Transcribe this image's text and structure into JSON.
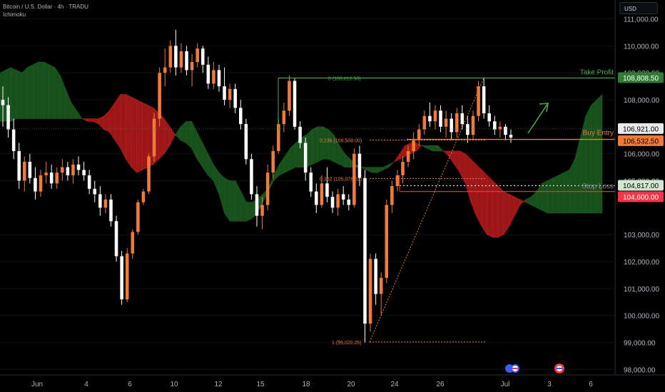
{
  "header": {
    "symbol": "Bitcoin / U.S. Dollar · 4h · TRADU",
    "indicator": "Ichimoku"
  },
  "currency_button": {
    "label": "USD"
  },
  "price_axis": {
    "ticks": [
      "111,000.00",
      "110,000.00",
      "109,000.00",
      "108,000.00",
      "106,000.00",
      "105,000.00",
      "103,000.00",
      "102,000.00",
      "101,000.00",
      "100,000.00",
      "99,000.00",
      "98,000.00"
    ],
    "tick_values": [
      111000,
      110000,
      109000,
      108000,
      106000,
      105000,
      103000,
      102000,
      101000,
      100000,
      99000,
      98000
    ]
  },
  "time_axis": {
    "labels": [
      "Jun",
      "4",
      "6",
      "10",
      "12",
      "15",
      "18",
      "20",
      "24",
      "26",
      "Jul",
      "3",
      "6"
    ]
  },
  "price_labels": [
    {
      "text": "108,808.50",
      "value": 108808.5,
      "bg": "#2e7d32",
      "fg": "#ffffff"
    },
    {
      "text": "106,921.00",
      "value": 106921,
      "bg": "#e8eaed",
      "fg": "#000000"
    },
    {
      "text": "106,532.50",
      "value": 106532.5,
      "bg": "#f07a3a",
      "fg": "#000000"
    },
    {
      "text": "104,817.00",
      "value": 104817,
      "bg": "#cfe8cf",
      "fg": "#000000"
    },
    {
      "text": "104,600.00",
      "value": 104600,
      "bg": "#f23645",
      "fg": "#ffffff"
    }
  ],
  "annotations": {
    "take_profit": "Take Profit",
    "buy_entry": "Buy Entry",
    "stop_loss": "Stop Loss"
  },
  "fib_labels": {
    "level_0": "0 (108,810.50)",
    "level_0236": "0.236 (106,508.00)",
    "level_0382": "0.382 (105,076.61)",
    "level_1": "1 (99,020.25)"
  },
  "colors": {
    "up": "#f07a3a",
    "down": "#ffffff",
    "cloud_bull": "#1b5e20",
    "cloud_bear": "#b71c1c",
    "take_profit_line": "#4caf50",
    "entry_line": "#f07a3a",
    "stop_line": "#f23645",
    "fib": "#f07a3a",
    "arrow": "#4caf50"
  },
  "chart_data": {
    "type": "candlestick",
    "ylim": [
      97800,
      111700
    ],
    "candles": [
      [
        108000,
        108500,
        107000,
        107800
      ],
      [
        107800,
        108100,
        106600,
        106900
      ],
      [
        106900,
        107300,
        105800,
        106100
      ],
      [
        106100,
        106400,
        104700,
        105000
      ],
      [
        105000,
        105900,
        104600,
        105700
      ],
      [
        105700,
        106000,
        104900,
        105100
      ],
      [
        105100,
        105500,
        104300,
        104600
      ],
      [
        104600,
        105400,
        104400,
        105200
      ],
      [
        105200,
        105700,
        104900,
        105300
      ],
      [
        105300,
        105600,
        104700,
        104900
      ],
      [
        104900,
        105500,
        104700,
        105300
      ],
      [
        105300,
        105800,
        105000,
        105500
      ],
      [
        105500,
        105700,
        105000,
        105200
      ],
      [
        105200,
        105800,
        104900,
        105600
      ],
      [
        105600,
        105900,
        105200,
        105400
      ],
      [
        105400,
        105700,
        105000,
        105200
      ],
      [
        105200,
        105400,
        104500,
        104700
      ],
      [
        104700,
        105000,
        104200,
        104500
      ],
      [
        104500,
        104800,
        103700,
        104000
      ],
      [
        104000,
        104500,
        103800,
        104300
      ],
      [
        104300,
        104500,
        103300,
        103500
      ],
      [
        103500,
        103700,
        102000,
        102200
      ],
      [
        102200,
        102400,
        100400,
        100600
      ],
      [
        100600,
        102500,
        100500,
        102300
      ],
      [
        102300,
        103200,
        102100,
        103100
      ],
      [
        103100,
        104300,
        103000,
        104200
      ],
      [
        104200,
        104700,
        104100,
        104600
      ],
      [
        104600,
        106000,
        104500,
        105900
      ],
      [
        105900,
        107500,
        105700,
        107300
      ],
      [
        107300,
        109200,
        107000,
        109000
      ],
      [
        109000,
        109900,
        108500,
        109200
      ],
      [
        109200,
        110200,
        109000,
        110000
      ],
      [
        110000,
        110600,
        108900,
        109200
      ],
      [
        109200,
        110100,
        109000,
        109800
      ],
      [
        109800,
        110000,
        108900,
        109100
      ],
      [
        109100,
        109700,
        108500,
        109400
      ],
      [
        109400,
        110100,
        109200,
        109900
      ],
      [
        109900,
        110000,
        109000,
        109300
      ],
      [
        109300,
        109600,
        108400,
        108600
      ],
      [
        108600,
        109400,
        108400,
        109100
      ],
      [
        109100,
        109300,
        108300,
        108500
      ],
      [
        108500,
        109200,
        107800,
        108000
      ],
      [
        108000,
        108600,
        107700,
        108400
      ],
      [
        108400,
        108600,
        107500,
        107700
      ],
      [
        107700,
        108000,
        106900,
        107100
      ],
      [
        107100,
        107300,
        105600,
        105800
      ],
      [
        105800,
        106000,
        104300,
        104500
      ],
      [
        104500,
        104800,
        103300,
        103700
      ],
      [
        103700,
        104400,
        103200,
        104100
      ],
      [
        104100,
        105600,
        103900,
        105300
      ],
      [
        105300,
        106300,
        105100,
        106100
      ],
      [
        106100,
        107300,
        106000,
        107100
      ],
      [
        107100,
        107900,
        106800,
        107600
      ],
      [
        107600,
        108900,
        107400,
        108700
      ],
      [
        108700,
        108800,
        106900,
        107000
      ],
      [
        107000,
        107200,
        106200,
        106400
      ],
      [
        106400,
        106600,
        105000,
        105300
      ],
      [
        105300,
        105500,
        104400,
        104600
      ],
      [
        104600,
        104900,
        103800,
        104100
      ],
      [
        104100,
        105200,
        104000,
        104900
      ],
      [
        104900,
        105500,
        104200,
        104400
      ],
      [
        104400,
        104600,
        103800,
        104000
      ],
      [
        104000,
        104700,
        103700,
        104500
      ],
      [
        104500,
        104800,
        104100,
        104300
      ],
      [
        104300,
        104500,
        103900,
        104100
      ],
      [
        104100,
        106200,
        104000,
        106000
      ],
      [
        106000,
        106300,
        104800,
        105100
      ],
      [
        105100,
        105400,
        99000,
        99700
      ],
      [
        99700,
        102300,
        99400,
        102100
      ],
      [
        102100,
        102300,
        100400,
        100800
      ],
      [
        100800,
        101600,
        100000,
        101400
      ],
      [
        101400,
        104300,
        101200,
        104100
      ],
      [
        104100,
        105000,
        103800,
        104800
      ],
      [
        104800,
        105400,
        104600,
        105200
      ],
      [
        105200,
        105900,
        104900,
        105700
      ],
      [
        105700,
        106300,
        105500,
        106100
      ],
      [
        106100,
        106800,
        105800,
        106500
      ],
      [
        106500,
        107100,
        106300,
        106900
      ],
      [
        106900,
        107600,
        106700,
        107400
      ],
      [
        107400,
        107900,
        107000,
        107200
      ],
      [
        107200,
        107800,
        106900,
        107600
      ],
      [
        107600,
        107800,
        106800,
        107000
      ],
      [
        107000,
        107600,
        106600,
        107300
      ],
      [
        107300,
        107500,
        106500,
        106800
      ],
      [
        106800,
        107700,
        106600,
        107500
      ],
      [
        107500,
        107800,
        106900,
        107100
      ],
      [
        107100,
        107400,
        106400,
        106700
      ],
      [
        106700,
        107600,
        106500,
        107400
      ],
      [
        107400,
        108700,
        107200,
        108500
      ],
      [
        108500,
        108800,
        107300,
        107500
      ],
      [
        107500,
        107800,
        107000,
        107200
      ],
      [
        107200,
        107400,
        106700,
        106900
      ],
      [
        106900,
        107200,
        106600,
        107000
      ],
      [
        107000,
        107100,
        106500,
        106700
      ],
      [
        106700,
        106900,
        106400,
        106600
      ]
    ],
    "cloud_a": [
      109000,
      109100,
      109200,
      109100,
      109000,
      109200,
      109300,
      109400,
      109400,
      109300,
      109200,
      108900,
      108400,
      107900,
      107600,
      107300,
      107200,
      107200,
      107100,
      106900,
      106800,
      106500,
      106200,
      105800,
      105500,
      105300,
      105400,
      105500,
      105600,
      105800,
      106000,
      106300,
      106700,
      107000,
      107200,
      107200,
      106800,
      106400,
      106000,
      105600,
      105300,
      105100,
      105000,
      105000,
      104600,
      104200,
      104200,
      104300,
      104500,
      104700,
      105200,
      105600,
      105900,
      106200,
      106400,
      106600,
      106700,
      106900,
      107000,
      107000,
      106900,
      106700,
      106300,
      106000,
      105800,
      105600,
      105500,
      105500,
      105500,
      105500,
      105500,
      105600,
      105700,
      105800,
      105900,
      106000,
      106100,
      106300,
      106300,
      106300,
      106300,
      106100,
      105900,
      105600,
      105300,
      104900,
      104200,
      103700,
      103300,
      103000,
      102900,
      102900,
      103000,
      103300,
      103700,
      104100,
      104300,
      104400,
      104600,
      104900,
      105000,
      105100,
      105200,
      105300,
      105400,
      105800,
      106600,
      107400,
      107800,
      108000,
      108200
    ],
    "cloud_b": [
      107200,
      107200,
      107200,
      107300,
      107300,
      107300,
      107300,
      107300,
      107300,
      107300,
      107300,
      107300,
      107300,
      107300,
      107300,
      107300,
      107300,
      107300,
      107300,
      107400,
      107600,
      107900,
      108200,
      108200,
      108100,
      108000,
      107900,
      107800,
      107700,
      107500,
      107300,
      107000,
      106700,
      106500,
      106400,
      106200,
      105800,
      105500,
      105200,
      105000,
      104500,
      103800,
      103500,
      103500,
      103500,
      103500,
      103600,
      103800,
      104200,
      104600,
      105000,
      105200,
      105300,
      105400,
      105500,
      105500,
      105500,
      105600,
      105700,
      105800,
      105800,
      105700,
      105600,
      105500,
      105500,
      105500,
      105500,
      105400,
      105300,
      105300,
      105400,
      105500,
      105700,
      106000,
      106300,
      106400,
      106400,
      106300,
      106200,
      106100,
      106100,
      106100,
      106100,
      106100,
      106100,
      106000,
      105800,
      105600,
      105400,
      105200,
      105000,
      104800,
      104600,
      104500,
      104400,
      104300,
      104200,
      104100,
      104000,
      103900,
      103800,
      103800,
      103800,
      103800,
      103800,
      103800,
      103800,
      103800,
      103800,
      103800,
      103800
    ]
  }
}
